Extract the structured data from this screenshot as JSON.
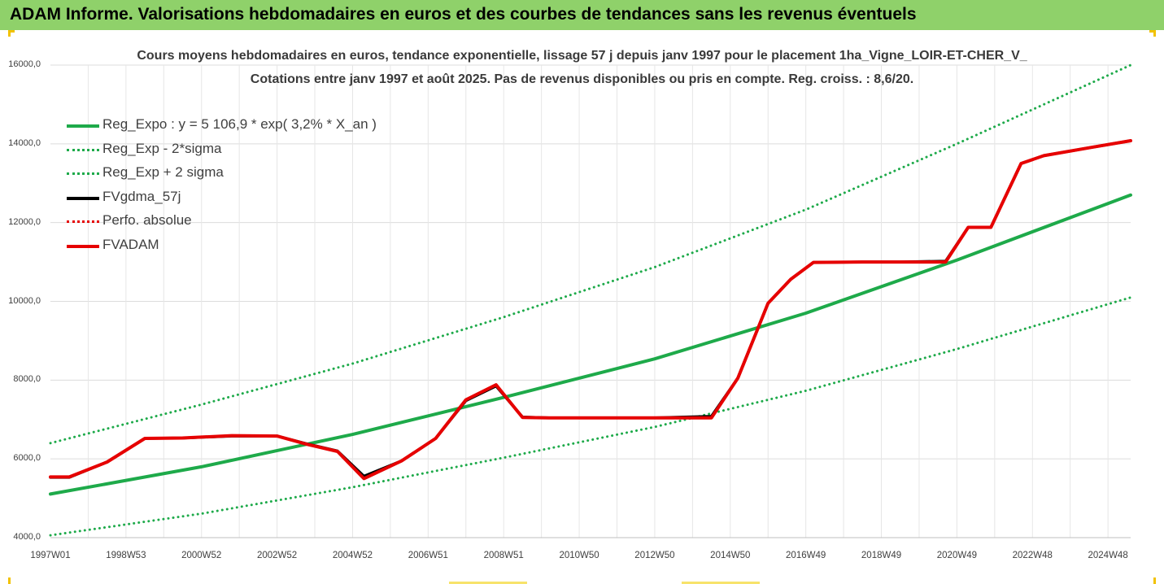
{
  "page": {
    "banner_title": "ADAM Informe. Valorisations hebdomadaires en euros et des courbes de tendances sans les revenus éventuels",
    "colors": {
      "banner": "#8fd16a",
      "corner_accent": "#f2c200"
    }
  },
  "chart_data": {
    "type": "line",
    "title": "Cours moyens hebdomadaires en euros, tendance exponentielle, lissage 57 j depuis janv 1997 pour le placement 1ha_Vigne_LOIR-ET-CHER_V_",
    "subtitle": "Cotations entre janv 1997 et août 2025.  Pas de revenus disponibles ou pris en compte. Reg. croiss. : 8,6/20.",
    "xlabel": "",
    "ylabel": "",
    "x_range": [
      1997.0,
      2025.6
    ],
    "ylim": [
      4000,
      16000
    ],
    "y_ticks": [
      "4000,0",
      "6000,0",
      "8000,0",
      "10000,0",
      "12000,0",
      "14000,0",
      "16000,0"
    ],
    "x_ticks": [
      {
        "label": "1997W01",
        "x": 1997.0
      },
      {
        "label": "1998W53",
        "x": 1999.0
      },
      {
        "label": "2000W52",
        "x": 2001.0
      },
      {
        "label": "2002W52",
        "x": 2003.0
      },
      {
        "label": "2004W52",
        "x": 2005.0
      },
      {
        "label": "2006W51",
        "x": 2007.0
      },
      {
        "label": "2008W51",
        "x": 2009.0
      },
      {
        "label": "2010W50",
        "x": 2011.0
      },
      {
        "label": "2012W50",
        "x": 2013.0
      },
      {
        "label": "2014W50",
        "x": 2015.0
      },
      {
        "label": "2016W49",
        "x": 2017.0
      },
      {
        "label": "2018W49",
        "x": 2019.0
      },
      {
        "label": "2020W49",
        "x": 2021.0
      },
      {
        "label": "2022W48",
        "x": 2023.0
      },
      {
        "label": "2024W48",
        "x": 2025.0
      }
    ],
    "grid": true,
    "legend_position": "top-left",
    "series": [
      {
        "name": "Reg_Expo : y = 5 106,9 * exp( 3,2% *  X_an )",
        "color": "#1eaa4a",
        "style": "solid",
        "x": [
          1997.0,
          2001.0,
          2005.0,
          2009.0,
          2013.0,
          2017.0,
          2021.0,
          2025.6
        ],
        "values": [
          5107,
          5800,
          6620,
          7560,
          8540,
          9700,
          11050,
          12700
        ]
      },
      {
        "name": "Reg_Exp - 2*sigma",
        "color": "#1eaa4a",
        "style": "dotted",
        "x": [
          1997.0,
          2001.0,
          2005.0,
          2009.0,
          2013.0,
          2017.0,
          2021.0,
          2025.6
        ],
        "values": [
          4060,
          4610,
          5280,
          6030,
          6810,
          7730,
          8790,
          10100
        ]
      },
      {
        "name": "Reg_Exp + 2 sigma",
        "color": "#1eaa4a",
        "style": "dotted",
        "x": [
          1997.0,
          2001.0,
          2005.0,
          2009.0,
          2013.0,
          2017.0,
          2021.0,
          2025.6
        ],
        "values": [
          6400,
          7380,
          8420,
          9600,
          10870,
          12330,
          14000,
          16000
        ]
      },
      {
        "name": "FVgdma_57j",
        "color": "#000000",
        "style": "solid",
        "x": [
          1997.0,
          1997.5,
          1998.5,
          1999.5,
          2000.5,
          2001.8,
          2003.0,
          2003.8,
          2004.6,
          2005.3,
          2006.3,
          2007.2,
          2008.0,
          2008.8,
          2009.5,
          2010.2,
          2011.5,
          2013.0,
          2014.5,
          2015.2,
          2016.0,
          2016.6,
          2017.2,
          2018.5,
          2019.5,
          2020.7,
          2021.3,
          2021.9,
          2022.7,
          2023.3,
          2024.5,
          2025.6
        ],
        "values": [
          5530,
          5530,
          5920,
          6520,
          6530,
          6580,
          6580,
          6380,
          6200,
          5560,
          5950,
          6520,
          7480,
          7850,
          7060,
          7040,
          7040,
          7040,
          7080,
          8050,
          9950,
          10560,
          10990,
          11000,
          11000,
          11020,
          11880,
          11880,
          13500,
          13700,
          13900,
          14080
        ]
      },
      {
        "name": "Perfo. absolue",
        "color": "#e60000",
        "style": "dotted",
        "x": [],
        "values": []
      },
      {
        "name": "FVADAM",
        "color": "#e60000",
        "style": "solid",
        "x": [
          1997.0,
          1997.5,
          1998.5,
          1999.5,
          2000.5,
          2001.8,
          2003.0,
          2003.8,
          2004.6,
          2005.3,
          2006.3,
          2007.2,
          2008.0,
          2008.8,
          2009.5,
          2010.2,
          2011.5,
          2013.0,
          2014.5,
          2015.2,
          2016.0,
          2016.6,
          2017.2,
          2018.5,
          2019.5,
          2020.7,
          2021.3,
          2021.9,
          2022.7,
          2023.3,
          2024.5,
          2025.6
        ],
        "values": [
          5540,
          5540,
          5920,
          6520,
          6530,
          6590,
          6580,
          6370,
          6190,
          5500,
          5950,
          6520,
          7500,
          7880,
          7050,
          7040,
          7040,
          7040,
          7040,
          8050,
          9950,
          10560,
          10990,
          11000,
          11000,
          11000,
          11880,
          11880,
          13500,
          13700,
          13900,
          14080
        ]
      }
    ]
  }
}
